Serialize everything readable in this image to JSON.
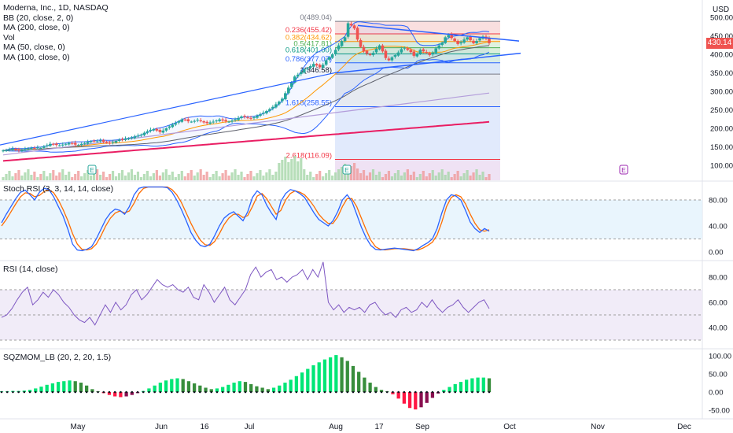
{
  "main_legend": {
    "title": "Moderna, Inc., 1D, NASDAQ",
    "lines": [
      "BB (20, close, 2, 0)",
      "MA (200, close, 0)",
      "Vol",
      "MA (50, close, 0)",
      "MA (100, close, 0)"
    ]
  },
  "currency": "USD",
  "last_price": "430.14",
  "pane_labels": {
    "stoch": "Stoch RSI (3, 3, 14, 14, close)",
    "rsi": "RSI (14, close)",
    "sqz": "SQZMOM_LB (20, 2, 20, 1.5)"
  },
  "colors": {
    "up": "#26a69a",
    "down": "#ef5350",
    "bb": "#2962ff",
    "ma200": "#e91e63",
    "ma50": "#5d606b",
    "ma100": "#b39ddb",
    "ma20": "#ff9800",
    "trend": "#2962ff",
    "rsi": "#7e57c2",
    "stoch_k": "#2962ff",
    "stoch_d": "#ff6d00",
    "mom_bright_up": "#00e676",
    "mom_dark_up": "#388e3c",
    "mom_bright_dn": "#ff1744",
    "mom_dark_dn": "#880e4f"
  },
  "chart_data": [
    {
      "type": "candlestick",
      "title": "Moderna, Inc., 1D, NASDAQ",
      "price_axis_ticks": [
        500,
        450,
        400,
        350,
        300,
        250,
        200,
        150,
        100
      ],
      "time_axis_labels": [
        "May",
        "Jun",
        "16",
        "Jul",
        "Aug",
        "17",
        "Sep",
        "Oct",
        "Nov",
        "Dec"
      ],
      "fib_levels": [
        {
          "label": "0(489.04)",
          "value": 489.04
        },
        {
          "label": "0.236(455.42)",
          "value": 455.42
        },
        {
          "label": "0.382(434.62)",
          "value": 434.62
        },
        {
          "label": "0.5(417.81)",
          "value": 417.81
        },
        {
          "label": "0.618(401.00)",
          "value": 401.0
        },
        {
          "label": "0.786(377.07)",
          "value": 377.07
        },
        {
          "label": "1(346.58)",
          "value": 346.58
        },
        {
          "label": "1.618(258.55)",
          "value": 258.55
        },
        {
          "label": "2.618(116.09)",
          "value": 116.09
        }
      ],
      "earnings_markers": [
        "E",
        "E",
        "E"
      ],
      "last_close": 430.14,
      "close_series": [
        140,
        141,
        143,
        145,
        142,
        140,
        141,
        144,
        146,
        147,
        146,
        148,
        147,
        151,
        154,
        158,
        157,
        155,
        154,
        156,
        158,
        160,
        159,
        156,
        155,
        158,
        160,
        163,
        165,
        166,
        165,
        167,
        164,
        161,
        160,
        163,
        166,
        169,
        170,
        172,
        173,
        175,
        178,
        180,
        183,
        188,
        192,
        196,
        198,
        194,
        190,
        194,
        200,
        205,
        210,
        214,
        219,
        224,
        223,
        219,
        218,
        220,
        223,
        219,
        216,
        214,
        216,
        218,
        221,
        224,
        221,
        219,
        218,
        221,
        224,
        228,
        232,
        231,
        228,
        226,
        230,
        234,
        238,
        242,
        247,
        252,
        258,
        265,
        272,
        280,
        295,
        310,
        325,
        340,
        345,
        352,
        360,
        362,
        368,
        374,
        370,
        365,
        372,
        384,
        392,
        400,
        412,
        424,
        436,
        446,
        484,
        478,
        470,
        440,
        420,
        408,
        402,
        398,
        404,
        415,
        424,
        408,
        390,
        384,
        392,
        398,
        405,
        414,
        418,
        412,
        406,
        396,
        402,
        412,
        408,
        404,
        398,
        405,
        416,
        424,
        432,
        446,
        452,
        444,
        436,
        428,
        433,
        440,
        446,
        438,
        430,
        436,
        444,
        448,
        442,
        430
      ]
    },
    {
      "type": "line",
      "title": "Stoch RSI (3, 3, 14, 14, close)",
      "yticks": [
        80.0,
        40.0,
        0.0
      ],
      "series": [
        {
          "name": "K",
          "values": [
            45,
            58,
            70,
            82,
            92,
            95,
            88,
            80,
            92,
            98,
            96,
            85,
            70,
            55,
            35,
            12,
            3,
            2,
            4,
            8,
            20,
            35,
            50,
            60,
            66,
            64,
            58,
            70,
            88,
            98,
            100,
            100,
            100,
            100,
            100,
            99,
            92,
            80,
            65,
            48,
            30,
            18,
            10,
            8,
            12,
            25,
            40,
            52,
            58,
            62,
            55,
            48,
            62,
            84,
            94,
            88,
            72,
            60,
            50,
            78,
            90,
            96,
            94,
            90,
            84,
            72,
            60,
            50,
            45,
            40,
            48,
            62,
            80,
            88,
            78,
            58,
            38,
            22,
            10,
            4,
            3,
            4,
            5,
            6,
            5,
            4,
            3,
            2,
            5,
            10,
            14,
            20,
            36,
            60,
            80,
            88,
            86,
            80,
            64,
            46,
            36,
            30,
            36,
            32
          ]
        },
        {
          "name": "D",
          "values": [
            40,
            50,
            62,
            74,
            85,
            91,
            90,
            85,
            87,
            93,
            96,
            91,
            80,
            65,
            48,
            28,
            12,
            4,
            3,
            5,
            12,
            25,
            40,
            52,
            60,
            63,
            60,
            63,
            75,
            90,
            98,
            100,
            100,
            100,
            100,
            100,
            96,
            88,
            76,
            60,
            44,
            30,
            18,
            11,
            10,
            16,
            28,
            42,
            52,
            58,
            58,
            53,
            56,
            70,
            86,
            90,
            82,
            70,
            58,
            64,
            80,
            90,
            94,
            92,
            88,
            80,
            70,
            58,
            50,
            44,
            44,
            54,
            70,
            82,
            82,
            70,
            52,
            34,
            18,
            8,
            4,
            3,
            4,
            5,
            5,
            5,
            4,
            3,
            3,
            6,
            10,
            15,
            26,
            46,
            70,
            84,
            88,
            85,
            74,
            58,
            44,
            34,
            32,
            34
          ]
        }
      ]
    },
    {
      "type": "line",
      "title": "RSI (14, close)",
      "yticks": [
        80.0,
        60.0,
        40.0
      ],
      "series": [
        {
          "name": "RSI",
          "values": [
            48,
            50,
            55,
            62,
            68,
            72,
            58,
            62,
            68,
            64,
            70,
            66,
            60,
            56,
            50,
            46,
            44,
            48,
            42,
            50,
            58,
            52,
            60,
            54,
            58,
            66,
            70,
            62,
            66,
            72,
            78,
            74,
            72,
            74,
            70,
            68,
            72,
            64,
            62,
            74,
            68,
            60,
            66,
            72,
            62,
            58,
            64,
            70,
            82,
            88,
            80,
            84,
            86,
            78,
            80,
            76,
            80,
            82,
            86,
            78,
            86,
            80,
            92,
            60,
            54,
            58,
            52,
            56,
            54,
            56,
            52,
            58,
            60,
            54,
            50,
            52,
            48,
            54,
            56,
            52,
            54,
            60,
            56,
            62,
            56,
            52,
            56,
            58,
            62,
            56,
            52,
            56,
            60,
            62,
            55
          ]
        }
      ]
    },
    {
      "type": "bar",
      "title": "SQZMOM_LB (20, 2, 20, 1.5)",
      "yticks": [
        100.0,
        50.0,
        0.0,
        -50.0
      ],
      "values": [
        2,
        2,
        3,
        3,
        4,
        6,
        10,
        15,
        20,
        24,
        28,
        30,
        32,
        30,
        26,
        18,
        8,
        2,
        -3,
        -8,
        -12,
        -14,
        -12,
        -8,
        -3,
        3,
        10,
        18,
        26,
        32,
        36,
        38,
        36,
        30,
        24,
        18,
        12,
        8,
        10,
        14,
        20,
        26,
        30,
        28,
        22,
        16,
        12,
        8,
        12,
        18,
        26,
        34,
        44,
        54,
        64,
        74,
        82,
        90,
        96,
        102,
        96,
        86,
        72,
        56,
        40,
        26,
        14,
        6,
        2,
        -6,
        -18,
        -32,
        -44,
        -48,
        -42,
        -30,
        -16,
        -4,
        6,
        14,
        22,
        28,
        34,
        38,
        40,
        40,
        38
      ]
    }
  ]
}
